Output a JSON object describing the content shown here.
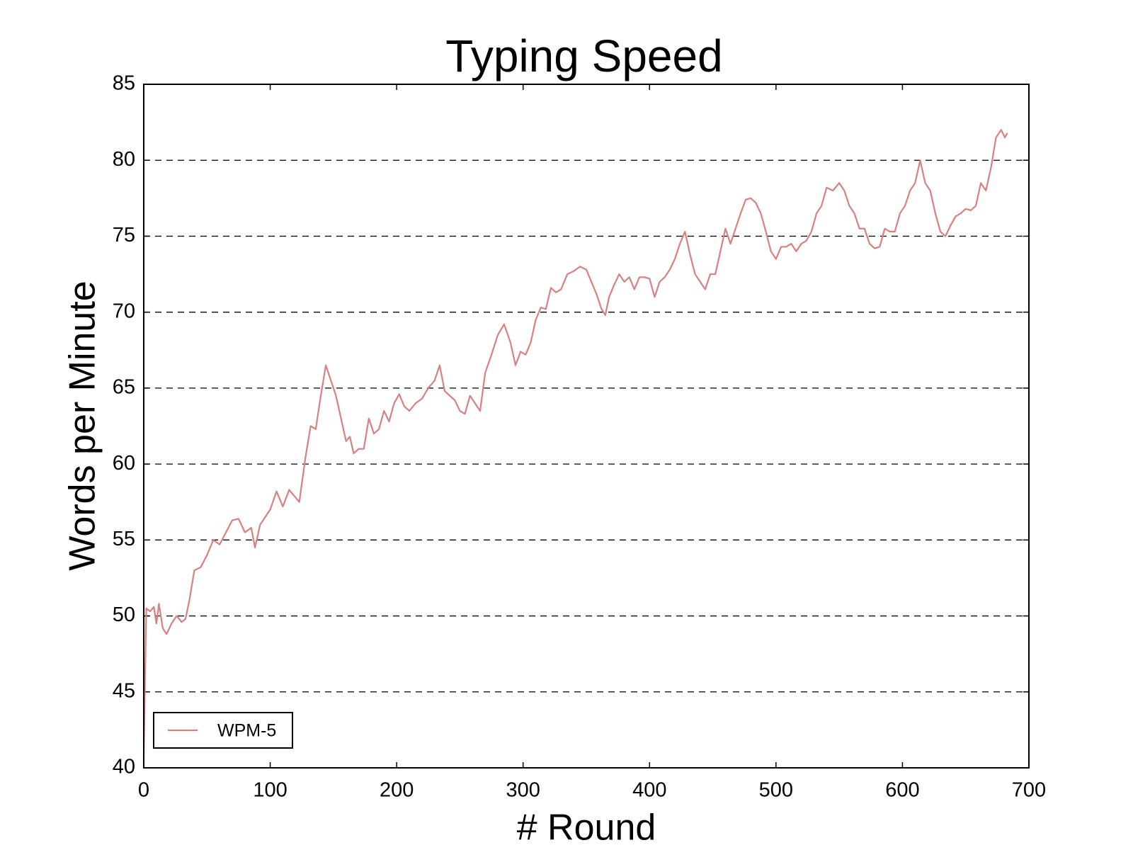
{
  "chart_data": {
    "type": "line",
    "title": "Typing Speed",
    "x_label": "# Round",
    "y_label": "Words per Minute",
    "xlim": [
      0,
      700
    ],
    "xticks": [
      0,
      100,
      200,
      300,
      400,
      500,
      600,
      700
    ],
    "ylim": [
      40,
      85
    ],
    "yticks": [
      40,
      45,
      50,
      55,
      60,
      65,
      70,
      75,
      80,
      85
    ],
    "grid": true,
    "legend": "lower left",
    "x": [
      0,
      2,
      5,
      8,
      10,
      12,
      15,
      18,
      22,
      26,
      30,
      33,
      36,
      40,
      45,
      50,
      55,
      60,
      65,
      70,
      75,
      80,
      85,
      88,
      92,
      96,
      100,
      105,
      110,
      115,
      120,
      123,
      128,
      132,
      136,
      140,
      144,
      148,
      152,
      156,
      160,
      163,
      166,
      170,
      174,
      178,
      182,
      186,
      190,
      194,
      198,
      202,
      206,
      210,
      215,
      220,
      225,
      230,
      234,
      238,
      242,
      246,
      250,
      254,
      258,
      262,
      266,
      270,
      275,
      280,
      285,
      290,
      294,
      298,
      302,
      306,
      310,
      314,
      318,
      322,
      326,
      330,
      335,
      340,
      345,
      350,
      354,
      358,
      362,
      365,
      368,
      372,
      376,
      380,
      384,
      388,
      392,
      396,
      400,
      404,
      408,
      412,
      416,
      420,
      424,
      428,
      432,
      436,
      440,
      444,
      448,
      452,
      456,
      460,
      464,
      468,
      472,
      476,
      480,
      484,
      488,
      492,
      496,
      500,
      504,
      508,
      512,
      516,
      520,
      524,
      528,
      532,
      536,
      540,
      545,
      550,
      554,
      558,
      562,
      566,
      570,
      574,
      578,
      582,
      586,
      590,
      594,
      598,
      602,
      606,
      610,
      614,
      618,
      622,
      626,
      630,
      634,
      638,
      642,
      646,
      650,
      654,
      658,
      662,
      666,
      670,
      674,
      678,
      681,
      683
    ],
    "series": [
      {
        "name": "WPM-5",
        "color": "#d98080",
        "values": [
          41,
          50.5,
          50.3,
          50.6,
          49.5,
          50.8,
          49.2,
          48.8,
          49.5,
          50,
          49.6,
          49.8,
          51,
          53,
          53.2,
          54,
          55,
          54.7,
          55.5,
          56.3,
          56.4,
          55.5,
          55.8,
          54.5,
          56,
          56.5,
          57,
          58.2,
          57.2,
          58.3,
          57.8,
          57.5,
          60.5,
          62.5,
          62.3,
          64.5,
          66.5,
          65.5,
          64.5,
          63,
          61.5,
          61.8,
          60.7,
          61,
          61,
          63,
          62,
          62.3,
          63.5,
          62.8,
          64,
          64.6,
          63.8,
          63.5,
          64,
          64.3,
          65,
          65.5,
          66.5,
          64.8,
          64.5,
          64.2,
          63.5,
          63.3,
          64.5,
          64,
          63.5,
          66,
          67.2,
          68.5,
          69.2,
          68,
          66.5,
          67.4,
          67.2,
          68,
          69.5,
          70.3,
          70.2,
          71.6,
          71.3,
          71.5,
          72.5,
          72.7,
          73,
          72.8,
          72,
          71.2,
          70.2,
          69.8,
          71,
          71.8,
          72.5,
          72,
          72.3,
          71.5,
          72.3,
          72.3,
          72.2,
          71,
          72,
          72.3,
          72.8,
          73.5,
          74.5,
          75.3,
          73.8,
          72.5,
          72,
          71.5,
          72.5,
          72.5,
          74,
          75.5,
          74.5,
          75.5,
          76.5,
          77.4,
          77.5,
          77.2,
          76.5,
          75.3,
          74,
          73.5,
          74.3,
          74.3,
          74.5,
          74,
          74.5,
          74.7,
          75.3,
          76.5,
          77,
          78.2,
          78,
          78.5,
          78,
          77,
          76.5,
          75.5,
          75.5,
          74.5,
          74.2,
          74.3,
          75.5,
          75.3,
          75.3,
          76.5,
          77,
          78,
          78.5,
          80,
          78.5,
          78,
          76.5,
          75.3,
          75,
          75.7,
          76.3,
          76.5,
          76.8,
          76.7,
          77,
          78.5,
          78,
          79.5,
          81.5,
          82,
          81.5,
          81.8
        ]
      }
    ]
  }
}
